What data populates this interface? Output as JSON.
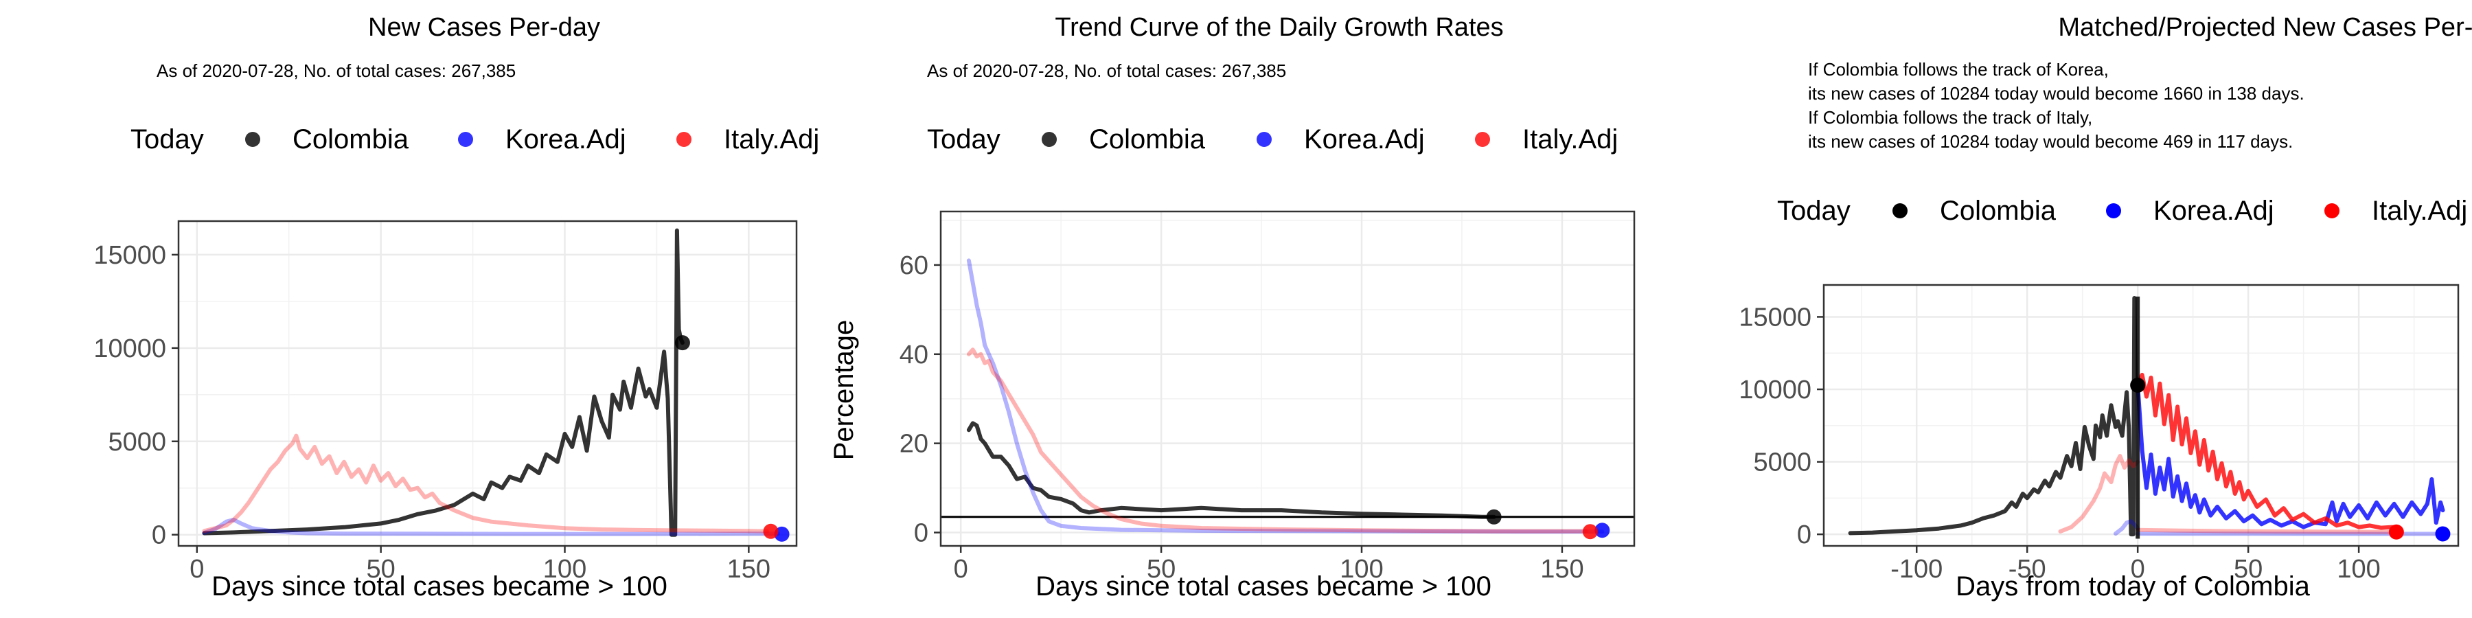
{
  "legend": {
    "title": "Today",
    "entries": [
      "Colombia",
      "Korea.Adj",
      "Italy.Adj"
    ],
    "colors": [
      "#000000",
      "#0000ff",
      "#ff0000"
    ]
  },
  "panel1": {
    "title": "New Cases Per-day",
    "subtitle": "As of 2020-07-28, No. of total cases: 267,385",
    "xlabel": "Days since total cases became > 100",
    "ylabel": ""
  },
  "panel2": {
    "title": "Trend Curve of the Daily Growth Rates",
    "subtitle": "As of 2020-07-28, No. of total cases: 267,385",
    "xlabel": "Days since total cases became > 100",
    "ylabel": "Percentage"
  },
  "panel3": {
    "title": "Matched/Projected New Cases Per-day",
    "notes": [
      "If Colombia follows the track of Korea,",
      "its new cases of 10284 today would become 1660 in 138 days.",
      "If Colombia follows the track of Italy,",
      "its new cases of 10284 today would become 469 in 117 days."
    ],
    "xlabel": "Days from today of Colombia",
    "ylabel": ""
  },
  "chart_data": [
    {
      "type": "line",
      "title": "New Cases Per-day",
      "subtitle": "As of 2020-07-28, No. of total cases: 267,385",
      "xlabel": "Days since total cases became > 100",
      "ylabel": "",
      "xlim": [
        -5,
        163
      ],
      "ylim": [
        -600,
        16800
      ],
      "xticks": [
        0,
        50,
        100,
        150
      ],
      "yticks": [
        0,
        5000,
        10000,
        15000
      ],
      "grid": true,
      "legend_position": "top",
      "series": [
        {
          "name": "Colombia",
          "color": "#000000",
          "opacity": 0.8,
          "x": [
            2,
            10,
            20,
            30,
            40,
            50,
            55,
            60,
            65,
            70,
            75,
            78,
            80,
            83,
            85,
            88,
            90,
            93,
            95,
            98,
            100,
            102,
            104,
            106,
            108,
            110,
            112,
            113,
            115,
            116,
            118,
            120,
            122,
            123,
            125,
            126,
            127,
            128,
            129,
            130,
            130.5,
            131,
            131.5,
            132
          ],
          "y": [
            80,
            120,
            200,
            280,
            400,
            600,
            800,
            1100,
            1300,
            1600,
            2200,
            1900,
            2800,
            2500,
            3100,
            2900,
            3700,
            3300,
            4300,
            3900,
            5400,
            4700,
            6300,
            4500,
            7400,
            6100,
            5200,
            7500,
            6700,
            8200,
            6800,
            8900,
            7400,
            7800,
            6800,
            8300,
            9800,
            7300,
            0,
            0,
            16300,
            11000,
            10500,
            10284
          ]
        },
        {
          "name": "Korea.Adj",
          "color": "#0000ff",
          "opacity": 0.3,
          "x": [
            2,
            5,
            8,
            10,
            12,
            15,
            20,
            25,
            30,
            40,
            60,
            90,
            120,
            150,
            158
          ],
          "y": [
            100,
            300,
            700,
            800,
            600,
            350,
            200,
            120,
            80,
            60,
            50,
            40,
            40,
            50,
            50
          ]
        },
        {
          "name": "Italy.Adj",
          "color": "#ff0000",
          "opacity": 0.3,
          "x": [
            2,
            5,
            8,
            10,
            12,
            14,
            16,
            18,
            20,
            22,
            24,
            26,
            27,
            28,
            30,
            32,
            34,
            36,
            38,
            40,
            42,
            44,
            46,
            48,
            50,
            52,
            54,
            56,
            58,
            60,
            62,
            64,
            66,
            68,
            70,
            75,
            80,
            85,
            90,
            100,
            110,
            120,
            130,
            140,
            150,
            155
          ],
          "y": [
            200,
            350,
            500,
            800,
            1200,
            1700,
            2300,
            2900,
            3500,
            3900,
            4500,
            4900,
            5300,
            4600,
            4100,
            4700,
            3800,
            4200,
            3300,
            3900,
            3100,
            3500,
            2800,
            3700,
            2900,
            3300,
            2600,
            3000,
            2400,
            2500,
            2000,
            2200,
            1700,
            1500,
            1300,
            900,
            700,
            600,
            500,
            350,
            280,
            250,
            230,
            220,
            200,
            180
          ]
        }
      ],
      "today_points": [
        {
          "name": "Colombia",
          "x": 132,
          "y": 10284
        },
        {
          "name": "Korea.Adj",
          "x": 159,
          "y": 30
        },
        {
          "name": "Italy.Adj",
          "x": 156,
          "y": 180
        }
      ]
    },
    {
      "type": "line",
      "title": "Trend Curve of the Daily Growth Rates",
      "subtitle": "As of 2020-07-28, No. of total cases: 267,385",
      "xlabel": "Days since total cases became > 100",
      "ylabel": "Percentage",
      "xlim": [
        -5,
        168
      ],
      "ylim": [
        -3,
        72
      ],
      "xticks": [
        0,
        50,
        100,
        150
      ],
      "yticks": [
        0,
        20,
        40,
        60
      ],
      "grid": true,
      "legend_position": "top",
      "hline": 3.5,
      "series": [
        {
          "name": "Colombia",
          "color": "#000000",
          "opacity": 0.8,
          "x": [
            2,
            3,
            4,
            5,
            6,
            8,
            10,
            12,
            14,
            16,
            18,
            20,
            22,
            25,
            28,
            30,
            32,
            35,
            40,
            50,
            60,
            70,
            80,
            90,
            100,
            110,
            120,
            130,
            133
          ],
          "y": [
            23,
            24.5,
            24,
            21,
            20,
            17,
            17,
            15,
            12,
            12.5,
            10,
            9.5,
            8,
            7.5,
            6.5,
            5,
            4.5,
            5,
            5.5,
            5,
            5.5,
            5,
            5,
            4.5,
            4.2,
            4,
            3.8,
            3.5,
            3.5
          ]
        },
        {
          "name": "Korea.Adj",
          "color": "#0000ff",
          "opacity": 0.3,
          "x": [
            2,
            3,
            4,
            5,
            6,
            8,
            10,
            12,
            14,
            16,
            18,
            20,
            22,
            25,
            30,
            40,
            60,
            100,
            140,
            160
          ],
          "y": [
            61,
            56,
            51,
            47,
            42,
            38,
            33,
            27,
            20,
            14,
            9,
            5,
            2.5,
            1.5,
            1,
            0.6,
            0.4,
            0.3,
            0.2,
            0.2
          ]
        },
        {
          "name": "Italy.Adj",
          "color": "#ff0000",
          "opacity": 0.3,
          "x": [
            2,
            3,
            4,
            5,
            6,
            7,
            8,
            10,
            12,
            14,
            16,
            18,
            20,
            22,
            25,
            28,
            30,
            33,
            36,
            40,
            45,
            50,
            60,
            80,
            100,
            130,
            156
          ],
          "y": [
            40,
            41,
            39.5,
            40,
            38,
            38.5,
            36,
            34,
            31,
            28,
            25,
            22,
            18,
            16,
            13,
            10,
            8,
            6,
            4.5,
            3,
            2,
            1.5,
            1,
            0.7,
            0.5,
            0.3,
            0.3
          ]
        }
      ],
      "today_points": [
        {
          "name": "Colombia",
          "x": 133,
          "y": 3.5
        },
        {
          "name": "Korea.Adj",
          "x": 160,
          "y": 0.5
        },
        {
          "name": "Italy.Adj",
          "x": 157,
          "y": 0.2
        }
      ]
    },
    {
      "type": "line",
      "title": "Matched/Projected New Cases Per-day",
      "xlabel": "Days from today of Colombia",
      "ylabel": "",
      "xlim": [
        -142,
        145
      ],
      "ylim": [
        -800,
        17200
      ],
      "xticks": [
        -100,
        -50,
        0,
        50,
        100,
        150
      ],
      "yticks": [
        0,
        5000,
        10000,
        15000
      ],
      "grid": true,
      "legend_position": "top",
      "vline": 0,
      "series": [
        {
          "name": "Colombia",
          "color": "#000000",
          "opacity": 0.8,
          "x": [
            -130,
            -120,
            -110,
            -100,
            -90,
            -80,
            -75,
            -70,
            -65,
            -60,
            -57,
            -55,
            -52,
            -50,
            -47,
            -45,
            -42,
            -40,
            -37,
            -35,
            -32,
            -30,
            -28,
            -26,
            -24,
            -22,
            -20,
            -19,
            -17,
            -16,
            -14,
            -12,
            -10,
            -9,
            -7,
            -6,
            -5,
            -4,
            -3,
            -2,
            -1.5,
            -1,
            -0.5,
            0
          ],
          "y": [
            80,
            120,
            200,
            280,
            400,
            600,
            800,
            1100,
            1300,
            1600,
            2200,
            1900,
            2800,
            2500,
            3100,
            2900,
            3700,
            3300,
            4300,
            3900,
            5400,
            4700,
            6300,
            4500,
            7400,
            6100,
            5200,
            7500,
            6700,
            8200,
            6800,
            8900,
            7400,
            7800,
            6800,
            8300,
            9800,
            7300,
            0,
            0,
            16300,
            11000,
            10500,
            10284
          ]
        },
        {
          "name": "Korea.Adj (matched)",
          "color": "#0000ff",
          "opacity": 0.3,
          "x": [
            -10,
            -7,
            -5,
            -3,
            -1,
            0
          ],
          "y": [
            50,
            400,
            800,
            900,
            600,
            400
          ]
        },
        {
          "name": "Korea.Adj",
          "color": "#0000ff",
          "opacity": 0.8,
          "x": [
            0,
            2,
            4,
            6,
            8,
            10,
            12,
            14,
            16,
            18,
            20,
            22,
            24,
            26,
            28,
            30,
            33,
            36,
            40,
            44,
            48,
            52,
            56,
            60,
            65,
            70,
            75,
            80,
            85,
            88,
            90,
            93,
            96,
            100,
            104,
            108,
            112,
            116,
            120,
            124,
            128,
            131,
            133,
            135,
            137,
            138
          ],
          "y": [
            10284,
            5800,
            3200,
            5500,
            2800,
            4600,
            3100,
            5200,
            2600,
            4000,
            2300,
            3500,
            1900,
            2700,
            1500,
            2400,
            1300,
            1900,
            1100,
            1600,
            900,
            1300,
            700,
            1000,
            600,
            900,
            500,
            800,
            700,
            2200,
            900,
            2100,
            1200,
            2000,
            1100,
            2200,
            1300,
            2100,
            1200,
            2200,
            1400,
            2100,
            3800,
            800,
            2200,
            1660
          ]
        },
        {
          "name": "Italy.Adj (matched)",
          "color": "#ff0000",
          "opacity": 0.3,
          "x": [
            -35,
            -30,
            -25,
            -20,
            -17,
            -15,
            -12,
            -10,
            -8,
            -6,
            -4,
            -2,
            0
          ],
          "y": [
            200,
            500,
            1200,
            2300,
            3200,
            4200,
            3600,
            4800,
            5400,
            4600,
            5100,
            4700,
            5000
          ]
        },
        {
          "name": "Italy.Adj",
          "color": "#ff0000",
          "opacity": 0.8,
          "x": [
            0,
            2,
            4,
            6,
            8,
            10,
            12,
            14,
            16,
            18,
            20,
            22,
            24,
            26,
            28,
            30,
            32,
            34,
            36,
            38,
            40,
            42,
            44,
            46,
            48,
            50,
            54,
            58,
            62,
            66,
            70,
            75,
            80,
            85,
            90,
            95,
            100,
            105,
            110,
            115,
            117
          ],
          "y": [
            10284,
            11000,
            9500,
            10800,
            8200,
            10400,
            7600,
            9600,
            6500,
            8800,
            6200,
            8000,
            5600,
            7100,
            4800,
            6500,
            4400,
            5700,
            3800,
            4900,
            3300,
            4300,
            2800,
            3600,
            2400,
            3000,
            1900,
            2400,
            1300,
            1800,
            1000,
            1400,
            800,
            1100,
            600,
            800,
            500,
            600,
            450,
            500,
            469
          ]
        },
        {
          "name": "Korea.Adj (flat)",
          "color": "#0000ff",
          "opacity": 0.3,
          "x": [
            0,
            20,
            50,
            80,
            110,
            138
          ],
          "y": [
            50,
            40,
            40,
            30,
            30,
            30
          ]
        },
        {
          "name": "Italy.Adj (flat)",
          "color": "#ff0000",
          "opacity": 0.3,
          "x": [
            0,
            20,
            40,
            60,
            80,
            100,
            117
          ],
          "y": [
            300,
            250,
            220,
            200,
            180,
            170,
            160
          ]
        }
      ],
      "today_points": [
        {
          "name": "Colombia",
          "x": 0,
          "y": 10284
        },
        {
          "name": "Korea.Adj",
          "x": 138,
          "y": 30
        },
        {
          "name": "Italy.Adj",
          "x": 117,
          "y": 160
        }
      ]
    }
  ]
}
